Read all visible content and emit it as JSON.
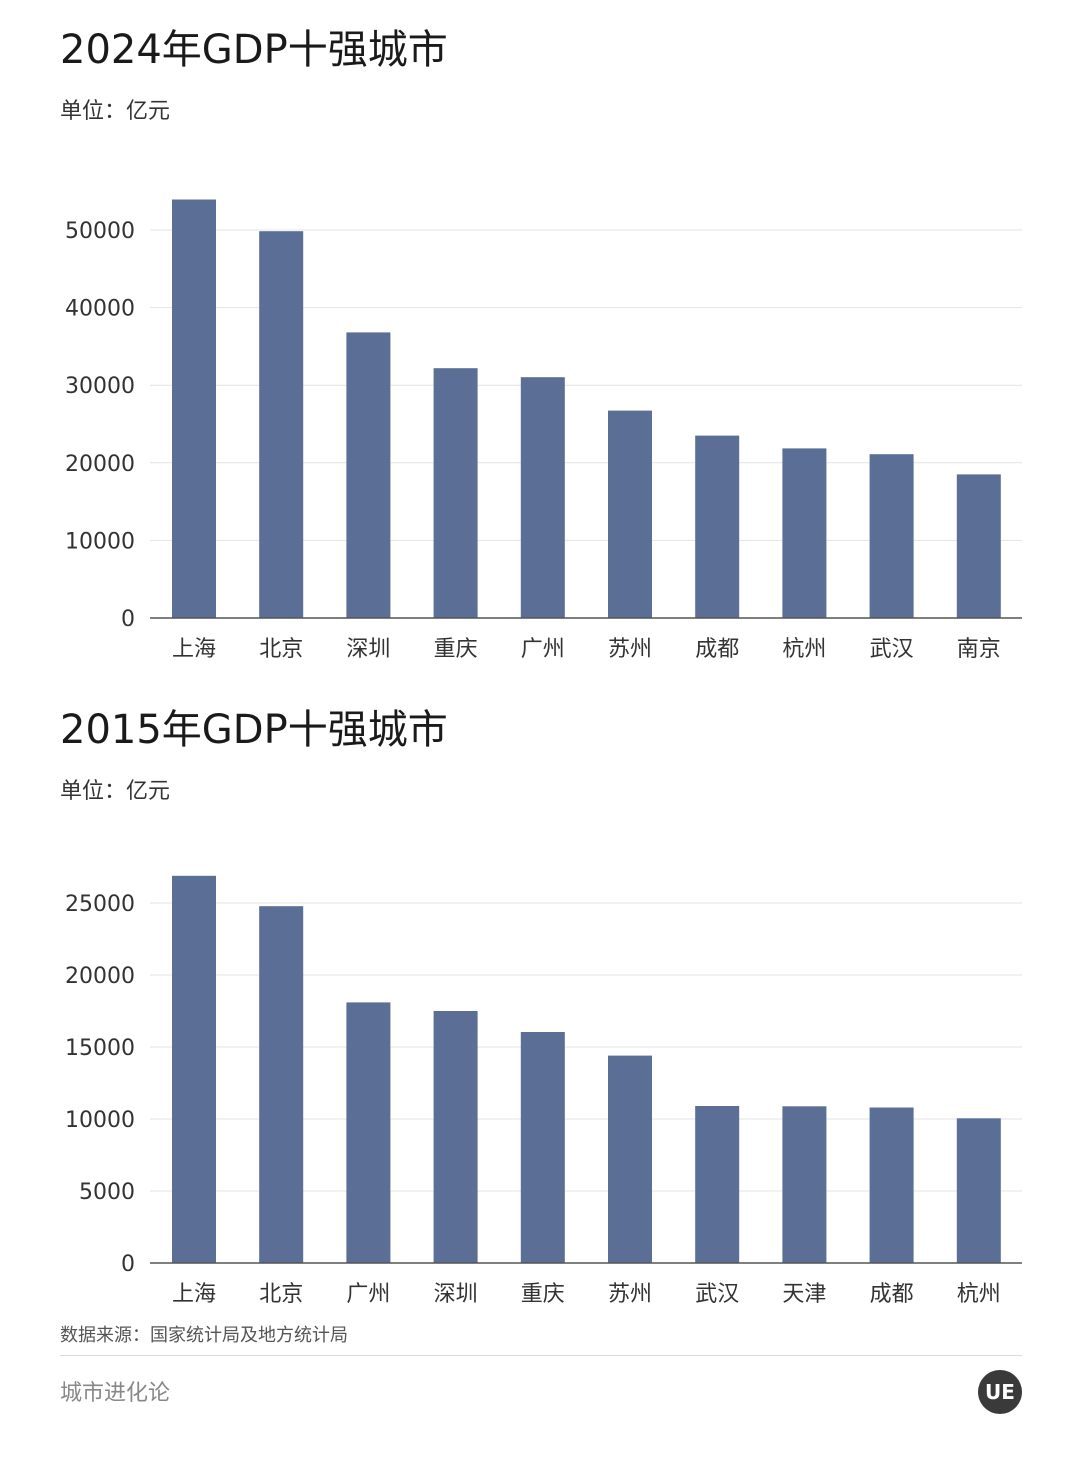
{
  "chart_data": [
    {
      "type": "bar",
      "title": "2024年GDP十强城市",
      "subtitle": "单位：亿元",
      "categories": [
        "上海",
        "北京",
        "深圳",
        "重庆",
        "广州",
        "苏州",
        "成都",
        "杭州",
        "武汉",
        "南京"
      ],
      "values": [
        53926,
        49843,
        36801,
        32193,
        31032,
        26727,
        23511,
        21860,
        21106,
        18500
      ],
      "ylim": [
        0,
        50000
      ],
      "yticks": [
        0,
        10000,
        20000,
        30000,
        40000,
        50000
      ],
      "grid": true,
      "bar_color": "#5b6e96"
    },
    {
      "type": "bar",
      "title": "2015年GDP十强城市",
      "subtitle": "单位：亿元",
      "categories": [
        "上海",
        "北京",
        "广州",
        "深圳",
        "重庆",
        "苏州",
        "武汉",
        "天津",
        "成都",
        "杭州"
      ],
      "values": [
        26887,
        24779,
        18100,
        17503,
        16040,
        14400,
        10906,
        10880,
        10801,
        10050
      ],
      "ylim": [
        0,
        25000
      ],
      "yticks": [
        0,
        5000,
        10000,
        15000,
        20000,
        25000
      ],
      "grid": true,
      "bar_color": "#5b6e96"
    }
  ],
  "footer": {
    "source": "数据来源：国家统计局及地方统计局",
    "brand": "城市进化论",
    "logo_text": "UE"
  }
}
